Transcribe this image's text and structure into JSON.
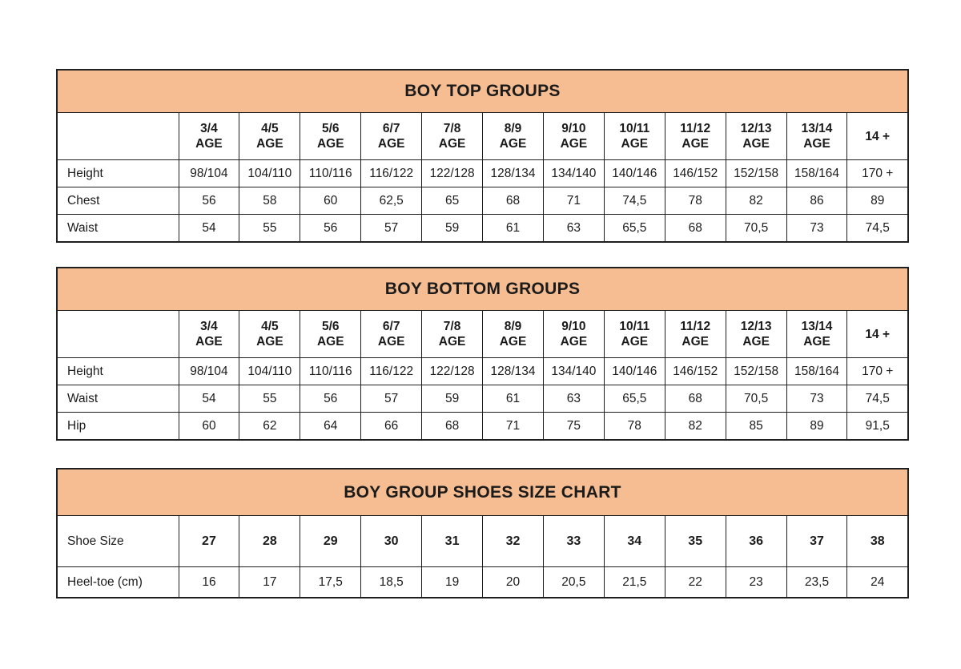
{
  "colors": {
    "title_bar_bg": "#f6bd92",
    "border": "#1f1f1f",
    "text": "#1b1b1b",
    "page_bg": "#ffffff"
  },
  "tables": [
    {
      "id": "boy-top-groups",
      "title": "BOY TOP GROUPS",
      "type": "age",
      "age_headers": [
        [
          "3/4",
          "AGE"
        ],
        [
          "4/5",
          "AGE"
        ],
        [
          "5/6",
          "AGE"
        ],
        [
          "6/7",
          "AGE"
        ],
        [
          "7/8",
          "AGE"
        ],
        [
          "8/9",
          "AGE"
        ],
        [
          "9/10",
          "AGE"
        ],
        [
          "10/11",
          "AGE"
        ],
        [
          "11/12",
          "AGE"
        ],
        [
          "12/13",
          "AGE"
        ],
        [
          "13/14",
          "AGE"
        ],
        [
          "14 +"
        ]
      ],
      "rows": [
        {
          "label": "Height",
          "values": [
            "98/104",
            "104/110",
            "110/116",
            "116/122",
            "122/128",
            "128/134",
            "134/140",
            "140/146",
            "146/152",
            "152/158",
            "158/164",
            "170 +"
          ]
        },
        {
          "label": "Chest",
          "values": [
            "56",
            "58",
            "60",
            "62,5",
            "65",
            "68",
            "71",
            "74,5",
            "78",
            "82",
            "86",
            "89"
          ]
        },
        {
          "label": "Waist",
          "values": [
            "54",
            "55",
            "56",
            "57",
            "59",
            "61",
            "63",
            "65,5",
            "68",
            "70,5",
            "73",
            "74,5"
          ]
        }
      ]
    },
    {
      "id": "boy-bottom-groups",
      "title": "BOY BOTTOM GROUPS",
      "type": "age",
      "age_headers": [
        [
          "3/4",
          "AGE"
        ],
        [
          "4/5",
          "AGE"
        ],
        [
          "5/6",
          "AGE"
        ],
        [
          "6/7",
          "AGE"
        ],
        [
          "7/8",
          "AGE"
        ],
        [
          "8/9",
          "AGE"
        ],
        [
          "9/10",
          "AGE"
        ],
        [
          "10/11",
          "AGE"
        ],
        [
          "11/12",
          "AGE"
        ],
        [
          "12/13",
          "AGE"
        ],
        [
          "13/14",
          "AGE"
        ],
        [
          "14 +"
        ]
      ],
      "rows": [
        {
          "label": "Height",
          "values": [
            "98/104",
            "104/110",
            "110/116",
            "116/122",
            "122/128",
            "128/134",
            "134/140",
            "140/146",
            "146/152",
            "152/158",
            "158/164",
            "170 +"
          ]
        },
        {
          "label": "Waist",
          "values": [
            "54",
            "55",
            "56",
            "57",
            "59",
            "61",
            "63",
            "65,5",
            "68",
            "70,5",
            "73",
            "74,5"
          ]
        },
        {
          "label": "Hip",
          "values": [
            "60",
            "62",
            "64",
            "66",
            "68",
            "71",
            "75",
            "78",
            "82",
            "85",
            "89",
            "91,5"
          ]
        }
      ]
    },
    {
      "id": "boy-group-shoes-size-chart",
      "title": "BOY GROUP SHOES SIZE CHART",
      "type": "shoes",
      "rows": [
        {
          "label": "Shoe Size",
          "bold_values": true,
          "values": [
            "27",
            "28",
            "29",
            "30",
            "31",
            "32",
            "33",
            "34",
            "35",
            "36",
            "37",
            "38"
          ]
        },
        {
          "label": "Heel-toe (cm)",
          "bold_values": false,
          "values": [
            "16",
            "17",
            "17,5",
            "18,5",
            "19",
            "20",
            "20,5",
            "21,5",
            "22",
            "23",
            "23,5",
            "24"
          ]
        }
      ]
    }
  ]
}
